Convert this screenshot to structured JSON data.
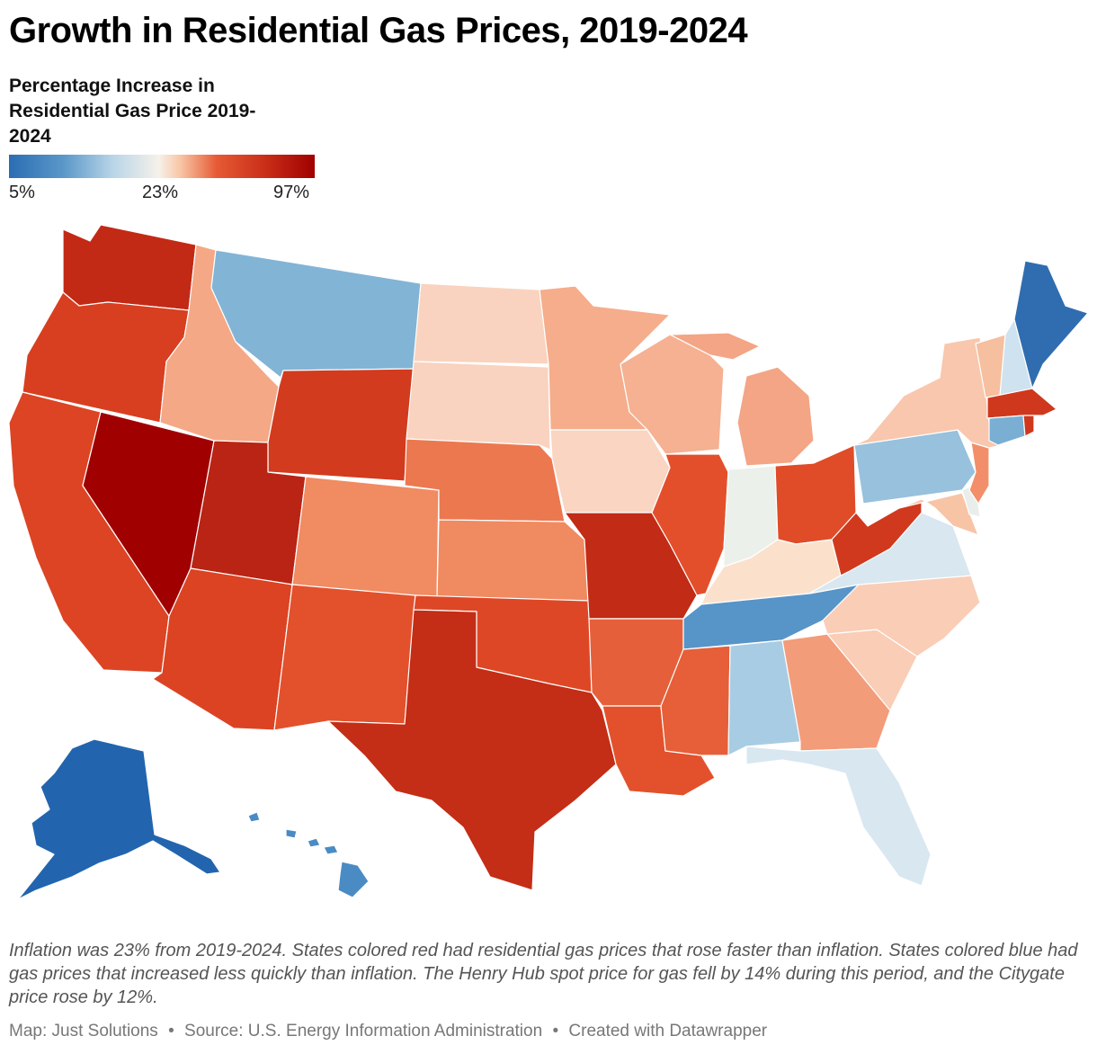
{
  "title": "Growth in Residential Gas Prices, 2019-2024",
  "legend": {
    "title": "Percentage Increase in Residential Gas Price 2019-2024",
    "min_label": "5%",
    "mid_label": "23%",
    "max_label": "97%",
    "colors": {
      "low": "#2a6db2",
      "mid": "#f6f1e9",
      "high": "#a00000"
    }
  },
  "colors": {
    "c_alaska": "#2265ae",
    "c_maine": "#2f6db0",
    "c_hawaii": "#4a8bc4",
    "c_tennessee": "#5794c8",
    "c_montana": "#82b4d6",
    "c_connecticut": "#7aaed3",
    "c_pennsylvania": "#97c1dd",
    "c_alabama": "#a8cce3",
    "c_newhampshire": "#cfe2ef",
    "c_virginia": "#d8e7f0",
    "c_florida": "#d8e7f0",
    "c_indiana": "#ecf0ea",
    "c_delaware": "#eaeeea",
    "c_kentucky": "#fbe1cc",
    "c_iowa": "#f9d5c2",
    "c_dakotas": "#f9d3bf",
    "c_carolinas": "#f9cdb6",
    "c_newyork": "#f8c7ad",
    "c_vermont": "#f6bf9f",
    "c_maryland": "#f7c4a6",
    "c_minnesota": "#f5ad8c",
    "c_wisconsin": "#f5b192",
    "c_michigan": "#f3a585",
    "c_idaho": "#f4a886",
    "c_georgia": "#f39c7a",
    "c_newjersey": "#f28e6a",
    "c_colorado": "#f08b62",
    "c_kansas": "#f08a61",
    "c_nebraska": "#ec7850",
    "c_arkansas": "#e5603a",
    "c_mississippi": "#e65f39",
    "c_louisiana": "#e2512c",
    "c_newmexico": "#e2512c",
    "c_illinois": "#e34f2b",
    "c_ohio": "#e04b28",
    "c_oklahoma": "#de4726",
    "c_arizona": "#db4323",
    "c_california": "#dc4424",
    "c_oregon": "#d73f20",
    "c_wyoming": "#d23b1e",
    "c_westvirginia": "#d0391d",
    "c_massachusetts": "#cf381d",
    "c_texas": "#c42d16",
    "c_missouri": "#c22b15",
    "c_washington": "#c22a15",
    "c_utah": "#b92414",
    "c_nevada": "#a00000"
  },
  "note": "Inflation was 23% from 2019-2024. States colored red had residential gas prices that rose faster than inflation. States colored blue had gas prices that increased less quickly than inflation. The Henry Hub spot price for gas fell by 14% during this period, and the Citygate price rose by 12%.",
  "footer": {
    "map_credit": "Map: Just Solutions",
    "source": "Source: U.S. Energy Information Administration",
    "created": "Created with Datawrapper",
    "separator": "•"
  }
}
